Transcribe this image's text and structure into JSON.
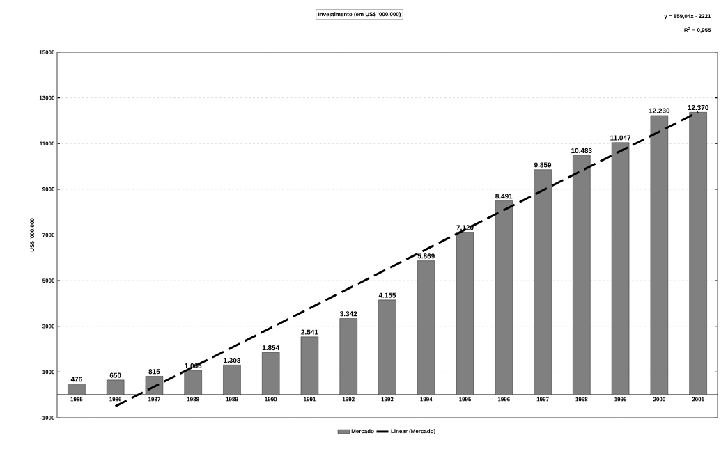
{
  "chart_data": {
    "type": "bar",
    "title": "Investimento (em US$ '000.000)",
    "ylabel": "US$ '000.000",
    "categories": [
      "1985",
      "1986",
      "1987",
      "1988",
      "1989",
      "1990",
      "1991",
      "1992",
      "1993",
      "1994",
      "1995",
      "1996",
      "1997",
      "1998",
      "1999",
      "2000",
      "2001"
    ],
    "series": [
      {
        "name": "Mercado",
        "color": "#808080",
        "values": [
          476,
          650,
          815,
          1066,
          1308,
          1854,
          2541,
          3342,
          4155,
          5869,
          7120,
          8491,
          9859,
          10483,
          11047,
          12230,
          12370
        ],
        "value_labels": [
          "476",
          "650",
          "815",
          "1.066",
          "1.308",
          "1.854",
          "2.541",
          "3.342",
          "4.155",
          "5.869",
          "7.120",
          "8.491",
          "9.859",
          "10.483",
          "11.047",
          "12.230",
          "12.370"
        ]
      },
      {
        "name": "Linear (Mercado)",
        "type": "line",
        "color": "#000000",
        "line_style": "dashed",
        "values": [
          null,
          -500,
          360,
          1220,
          2070,
          2930,
          3790,
          4650,
          5510,
          6370,
          7230,
          8090,
          8950,
          9810,
          10670,
          11520,
          12380
        ]
      }
    ],
    "ylim": [
      -1000,
      15000
    ],
    "yticks": [
      -1000,
      1000,
      3000,
      5000,
      7000,
      9000,
      11000,
      13000,
      15000
    ],
    "grid": true,
    "legend": "bottom",
    "annotations": [
      "y = 859,04x - 2221",
      "R$^{2}$ = 0,955"
    ]
  }
}
